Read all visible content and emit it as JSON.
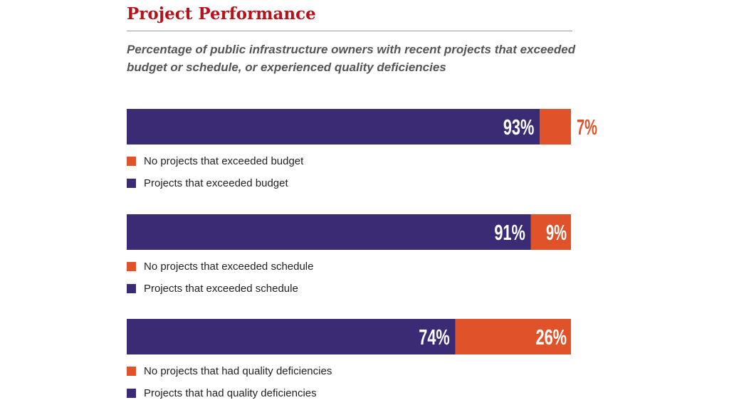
{
  "title": "Project Performance",
  "subtitle": "Percentage of public infrastructure owners with recent projects that exceeded budget or schedule, or experienced quality deficiencies",
  "colors": {
    "projects": "#3b2a74",
    "no_projects": "#e0522a",
    "title": "#b5121b"
  },
  "chart_data": {
    "type": "bar",
    "orientation": "horizontal",
    "stacked": true,
    "unit": "%",
    "xlim": [
      0,
      100
    ],
    "grid": false,
    "bars": [
      {
        "segments": [
          {
            "name": "Projects that exceeded budget",
            "value": 93,
            "label": "93%",
            "color_key": "projects"
          },
          {
            "name": "No projects that exceeded budget",
            "value": 7,
            "label": "7%",
            "color_key": "no_projects",
            "label_position": "outside"
          }
        ],
        "legend": [
          {
            "label": "No projects that exceeded budget",
            "color_key": "no_projects"
          },
          {
            "label": "Projects that exceeded budget",
            "color_key": "projects"
          }
        ]
      },
      {
        "segments": [
          {
            "name": "Projects that exceeded schedule",
            "value": 91,
            "label": "91%",
            "color_key": "projects"
          },
          {
            "name": "No projects that exceeded schedule",
            "value": 9,
            "label": "9%",
            "color_key": "no_projects",
            "label_position": "inside"
          }
        ],
        "legend": [
          {
            "label": "No projects that exceeded schedule",
            "color_key": "no_projects"
          },
          {
            "label": "Projects that exceeded schedule",
            "color_key": "projects"
          }
        ]
      },
      {
        "segments": [
          {
            "name": "Projects that had quality deficiencies",
            "value": 74,
            "label": "74%",
            "color_key": "projects"
          },
          {
            "name": "No projects that had quality deficiencies",
            "value": 26,
            "label": "26%",
            "color_key": "no_projects",
            "label_position": "inside"
          }
        ],
        "legend": [
          {
            "label": "No projects that had quality deficiencies",
            "color_key": "no_projects"
          },
          {
            "label": "Projects that had quality deficiencies",
            "color_key": "projects"
          }
        ]
      }
    ]
  }
}
